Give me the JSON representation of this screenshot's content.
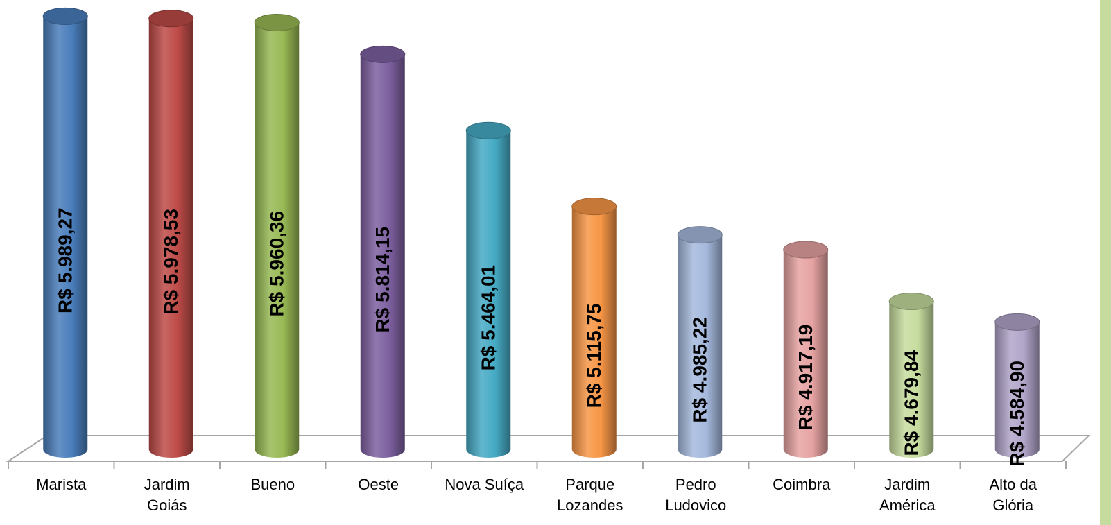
{
  "chart_data": {
    "type": "bar",
    "title": "",
    "xlabel": "",
    "ylabel": "",
    "ylim": [
      4000,
      6000
    ],
    "grid": false,
    "legend": "none",
    "categories": [
      [
        "Marista"
      ],
      [
        "Jardim",
        "Goiás"
      ],
      [
        "Bueno"
      ],
      [
        "Oeste"
      ],
      [
        "Nova Suíça"
      ],
      [
        "Parque",
        "Lozandes"
      ],
      [
        "Pedro",
        "Ludovico"
      ],
      [
        "Coimbra"
      ],
      [
        "Jardim",
        "América"
      ],
      [
        "Alto da",
        "Glória"
      ]
    ],
    "values": [
      5989.27,
      5978.53,
      5960.36,
      5814.15,
      5464.01,
      5115.75,
      4985.22,
      4917.19,
      4679.84,
      4584.9
    ],
    "data_labels": [
      "R$ 5.989,27",
      "R$ 5.978,53",
      "R$ 5.960,36",
      "R$ 5.814,15",
      "R$ 5.464,01",
      "R$ 5.115,75",
      "R$ 4.985,22",
      "R$ 4.917,19",
      "R$ 4.679,84",
      "R$ 4.584,90"
    ],
    "colors": [
      "#4a7ebb",
      "#be4b48",
      "#98b954",
      "#7d60a0",
      "#46aac5",
      "#f79646",
      "#a5b9dd",
      "#e6a3a2",
      "#c6dc9e",
      "#b1a5c9"
    ]
  }
}
